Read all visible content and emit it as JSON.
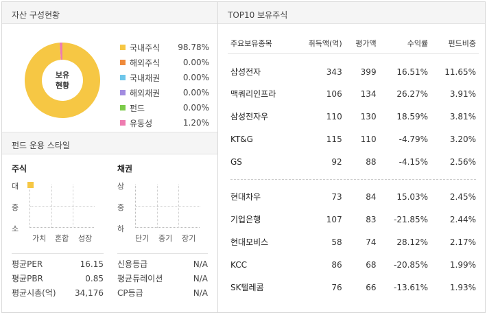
{
  "asset": {
    "header": "자산 구성현황",
    "center_label": "보유\n현황",
    "items": [
      {
        "name": "국내주식",
        "value": "98.78%",
        "pct": 98.78,
        "color": "#f6c744"
      },
      {
        "name": "해외주식",
        "value": "0.00%",
        "pct": 0,
        "color": "#ef8a3b"
      },
      {
        "name": "국내채권",
        "value": "0.00%",
        "pct": 0,
        "color": "#6ec6ea"
      },
      {
        "name": "해외채권",
        "value": "0.00%",
        "pct": 0,
        "color": "#a28ce0"
      },
      {
        "name": "펀드",
        "value": "0.00%",
        "pct": 0,
        "color": "#7ccb4a"
      },
      {
        "name": "유동성",
        "value": "1.20%",
        "pct": 1.2,
        "color": "#ee7cb0"
      }
    ]
  },
  "style": {
    "header": "펀드 운용 스타일",
    "stock": {
      "title": "주식",
      "y": [
        "대",
        "중",
        "소"
      ],
      "x": [
        "가치",
        "혼합",
        "성장"
      ],
      "marker": {
        "col": 0,
        "row": 0
      }
    },
    "bond": {
      "title": "채권",
      "y": [
        "상",
        "중",
        "하"
      ],
      "x": [
        "단기",
        "중기",
        "장기"
      ]
    }
  },
  "stats_left": [
    {
      "label": "평균PER",
      "value": "16.15"
    },
    {
      "label": "평균PBR",
      "value": "0.85"
    },
    {
      "label": "평균시총(억)",
      "value": "34,176"
    }
  ],
  "stats_right": [
    {
      "label": "신용등급",
      "value": "N/A"
    },
    {
      "label": "평균듀레이션",
      "value": "N/A"
    },
    {
      "label": "CP등급",
      "value": "N/A"
    }
  ],
  "top10": {
    "header": "TOP10 보유주식",
    "columns": [
      "주요보유종목",
      "취득액(억)",
      "평가액",
      "수익률",
      "펀드비중"
    ],
    "rows": [
      [
        "삼성전자",
        "343",
        "399",
        "16.51%",
        "11.65%"
      ],
      [
        "맥쿼리인프라",
        "106",
        "134",
        "26.27%",
        "3.91%"
      ],
      [
        "삼성전자우",
        "110",
        "130",
        "18.59%",
        "3.81%"
      ],
      [
        "KT&G",
        "115",
        "110",
        "-4.79%",
        "3.20%"
      ],
      [
        "GS",
        "92",
        "88",
        "-4.15%",
        "2.56%"
      ],
      [
        "현대차우",
        "73",
        "84",
        "15.03%",
        "2.45%"
      ],
      [
        "기업은행",
        "107",
        "83",
        "-21.85%",
        "2.44%"
      ],
      [
        "현대모비스",
        "58",
        "74",
        "28.12%",
        "2.17%"
      ],
      [
        "KCC",
        "86",
        "68",
        "-20.85%",
        "1.99%"
      ],
      [
        "SK텔레콤",
        "76",
        "66",
        "-13.61%",
        "1.93%"
      ]
    ]
  }
}
